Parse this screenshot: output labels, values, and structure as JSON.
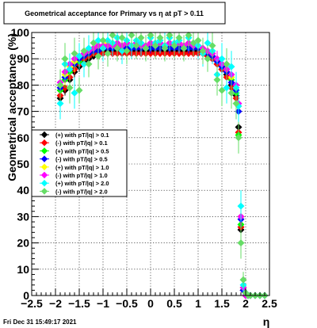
{
  "footer": {
    "timestamp": "Fri Dec 31 15:49:17 2021"
  },
  "chart_data": {
    "type": "scatter",
    "title": "Geometrical acceptance for Primary vs   η at pT > 0.11",
    "xlabel": "η",
    "ylabel": "Geometrical acceptance (%)",
    "xlim": [
      -2.5,
      2.5
    ],
    "ylim": [
      0,
      100
    ],
    "xticks": [
      -2.5,
      -2,
      -1.5,
      -1,
      -0.5,
      0,
      0.5,
      1,
      1.5,
      2,
      2.5
    ],
    "xtick_labels": [
      "−2.5",
      "−2",
      "−1.5",
      "−1",
      "−0.5",
      "0",
      "0.5",
      "1",
      "1.5",
      "2",
      "2.5"
    ],
    "yticks": [
      0,
      10,
      20,
      30,
      40,
      50,
      60,
      70,
      80,
      90,
      100
    ],
    "ytick_labels": [
      "0",
      "10",
      "20",
      "30",
      "40",
      "50",
      "60",
      "70",
      "80",
      "90",
      "100"
    ],
    "grid": true,
    "legend_position": "middle-left",
    "x": [
      -1.9,
      -1.8,
      -1.7,
      -1.6,
      -1.5,
      -1.4,
      -1.3,
      -1.2,
      -1.1,
      -1.0,
      -0.9,
      -0.8,
      -0.7,
      -0.6,
      -0.5,
      -0.4,
      -0.3,
      -0.2,
      -0.1,
      0.0,
      0.1,
      0.2,
      0.3,
      0.4,
      0.5,
      0.6,
      0.7,
      0.8,
      0.9,
      1.0,
      1.1,
      1.2,
      1.3,
      1.4,
      1.5,
      1.6,
      1.7,
      1.8,
      1.85,
      1.9,
      1.95,
      2.0,
      2.05,
      2.1,
      2.2,
      2.3,
      2.4
    ],
    "series": [
      {
        "name": "(+) with pT/|q| > 0.1",
        "color": "#000000",
        "values": [
          75,
          78,
          82,
          85,
          87,
          89,
          90,
          91,
          92,
          93,
          93,
          93,
          93,
          93,
          93,
          93,
          93,
          93,
          93,
          93,
          93,
          93,
          93,
          93,
          93,
          93,
          93,
          93,
          93,
          93,
          92,
          91,
          90,
          88,
          86,
          84,
          80,
          76,
          64,
          25,
          2,
          0,
          0,
          0,
          0,
          0,
          0
        ],
        "errors": [
          2,
          2,
          2,
          2,
          2,
          1,
          1,
          1,
          1,
          1,
          1,
          1,
          1,
          1,
          1,
          1,
          1,
          1,
          1,
          1,
          1,
          1,
          1,
          1,
          1,
          1,
          1,
          1,
          1,
          1,
          1,
          1,
          1,
          1,
          1,
          2,
          2,
          2,
          2,
          2,
          1,
          0,
          0,
          0,
          0,
          0,
          0
        ]
      },
      {
        "name": "(-) with pT/|q| > 0.1",
        "color": "#ff0000",
        "values": [
          76,
          79,
          83,
          86,
          88,
          90,
          91,
          92,
          92,
          92,
          92,
          92,
          92,
          92,
          92,
          92,
          92,
          92,
          92,
          92,
          92,
          92,
          92,
          92,
          92,
          92,
          92,
          92,
          92,
          92,
          92,
          91,
          90,
          88,
          86,
          83,
          79,
          75,
          62,
          26,
          2,
          0,
          0,
          0,
          0,
          0,
          0
        ],
        "errors": [
          2,
          2,
          2,
          2,
          2,
          1,
          1,
          1,
          1,
          1,
          1,
          1,
          1,
          1,
          1,
          1,
          1,
          1,
          1,
          1,
          1,
          1,
          1,
          1,
          1,
          1,
          1,
          1,
          1,
          1,
          1,
          1,
          1,
          1,
          1,
          2,
          2,
          2,
          2,
          2,
          1,
          0,
          0,
          0,
          0,
          0,
          0
        ]
      },
      {
        "name": "(+) with pT/|q| > 0.5",
        "color": "#00ff00",
        "values": [
          78,
          82,
          85,
          88,
          89,
          91,
          92,
          93,
          94,
          94,
          95,
          94,
          95,
          94,
          95,
          94,
          95,
          94,
          94,
          95,
          94,
          95,
          94,
          95,
          94,
          95,
          94,
          95,
          94,
          94,
          93,
          92,
          91,
          89,
          87,
          85,
          82,
          77,
          61,
          27,
          3,
          0,
          0,
          0,
          0,
          0,
          0
        ],
        "errors": [
          3,
          3,
          3,
          3,
          3,
          3,
          2,
          2,
          2,
          2,
          2,
          2,
          2,
          2,
          2,
          2,
          2,
          2,
          2,
          2,
          2,
          2,
          2,
          2,
          2,
          2,
          2,
          2,
          2,
          2,
          2,
          2,
          2,
          3,
          3,
          3,
          3,
          3,
          3,
          3,
          2,
          0,
          0,
          0,
          0,
          0,
          0
        ]
      },
      {
        "name": "(-) with pT/|q| > 0.5",
        "color": "#0000ff",
        "values": [
          79,
          83,
          86,
          88,
          90,
          91,
          92,
          93,
          93,
          94,
          94,
          94,
          94,
          94,
          94,
          94,
          94,
          94,
          94,
          94,
          94,
          94,
          94,
          94,
          94,
          94,
          94,
          94,
          94,
          94,
          93,
          92,
          91,
          89,
          87,
          85,
          81,
          78,
          70,
          29,
          2,
          0,
          0,
          0,
          0,
          0,
          0
        ],
        "errors": [
          3,
          3,
          3,
          3,
          3,
          3,
          2,
          2,
          2,
          2,
          2,
          2,
          2,
          2,
          2,
          2,
          2,
          2,
          2,
          2,
          2,
          2,
          2,
          2,
          2,
          2,
          2,
          2,
          2,
          2,
          2,
          2,
          2,
          3,
          3,
          3,
          3,
          3,
          3,
          3,
          2,
          0,
          0,
          0,
          0,
          0,
          0
        ]
      },
      {
        "name": "(+) with pT/|q| > 1.0",
        "color": "#ffff00",
        "values": [
          80,
          84,
          87,
          89,
          91,
          92,
          93,
          94,
          95,
          95,
          96,
          95,
          96,
          95,
          96,
          95,
          96,
          95,
          95,
          96,
          95,
          96,
          95,
          96,
          95,
          96,
          95,
          96,
          95,
          95,
          94,
          93,
          92,
          90,
          88,
          86,
          83,
          79,
          72,
          30,
          3,
          0,
          0,
          0,
          0,
          0,
          0
        ],
        "errors": [
          4,
          4,
          4,
          4,
          3,
          3,
          3,
          3,
          3,
          3,
          3,
          3,
          3,
          3,
          3,
          3,
          3,
          3,
          3,
          3,
          3,
          3,
          3,
          3,
          3,
          3,
          3,
          3,
          3,
          3,
          3,
          3,
          3,
          3,
          3,
          4,
          4,
          4,
          4,
          4,
          2,
          0,
          0,
          0,
          0,
          0,
          0
        ]
      },
      {
        "name": "(-) with pT/|q| > 1.0",
        "color": "#ff00ff",
        "values": [
          81,
          85,
          88,
          90,
          91,
          92,
          93,
          94,
          95,
          95,
          95,
          95,
          96,
          95,
          96,
          95,
          96,
          95,
          95,
          96,
          95,
          96,
          95,
          96,
          95,
          96,
          95,
          96,
          95,
          95,
          94,
          93,
          92,
          90,
          88,
          86,
          84,
          80,
          73,
          30,
          3,
          0,
          0,
          0,
          0,
          0,
          0
        ],
        "errors": [
          4,
          4,
          4,
          4,
          3,
          3,
          3,
          3,
          3,
          3,
          3,
          3,
          3,
          3,
          3,
          3,
          3,
          3,
          3,
          3,
          3,
          3,
          3,
          3,
          3,
          3,
          3,
          3,
          3,
          3,
          3,
          3,
          3,
          3,
          3,
          4,
          4,
          4,
          4,
          4,
          2,
          0,
          0,
          0,
          0,
          0,
          0
        ]
      },
      {
        "name": "(+) with pT/|q| > 2.0",
        "color": "#00ffff",
        "values": [
          73,
          88,
          86,
          77,
          91,
          88,
          94,
          96,
          97,
          94,
          97,
          96,
          98,
          93,
          97,
          95,
          97,
          96,
          94,
          98,
          96,
          97,
          95,
          98,
          96,
          97,
          94,
          98,
          96,
          95,
          92,
          96,
          93,
          84,
          90,
          79,
          87,
          79,
          72,
          34,
          4,
          1,
          0,
          0,
          0,
          0,
          0
        ],
        "errors": [
          6,
          6,
          6,
          6,
          5,
          5,
          5,
          5,
          5,
          5,
          5,
          5,
          5,
          5,
          5,
          5,
          5,
          5,
          5,
          5,
          5,
          5,
          5,
          5,
          5,
          5,
          5,
          5,
          5,
          5,
          5,
          5,
          5,
          6,
          6,
          6,
          6,
          6,
          6,
          6,
          3,
          1,
          0,
          0,
          0,
          0,
          0
        ]
      },
      {
        "name": "(-) with pT/|q| > 2.0",
        "color": "#66dd66",
        "values": [
          80,
          90,
          79,
          92,
          78,
          93,
          88,
          96,
          91,
          97,
          92,
          99,
          94,
          98,
          93,
          99,
          95,
          98,
          94,
          99,
          95,
          98,
          94,
          99,
          95,
          98,
          94,
          99,
          96,
          97,
          93,
          90,
          95,
          82,
          78,
          88,
          77,
          73,
          60,
          20,
          6,
          1,
          0,
          0,
          0,
          0,
          0
        ],
        "errors": [
          6,
          6,
          6,
          6,
          5,
          5,
          5,
          5,
          5,
          5,
          5,
          5,
          5,
          5,
          5,
          5,
          5,
          5,
          5,
          5,
          5,
          5,
          5,
          5,
          5,
          5,
          5,
          5,
          5,
          5,
          5,
          5,
          5,
          6,
          6,
          6,
          6,
          6,
          6,
          6,
          3,
          1,
          0,
          0,
          0,
          0,
          0
        ]
      }
    ]
  }
}
